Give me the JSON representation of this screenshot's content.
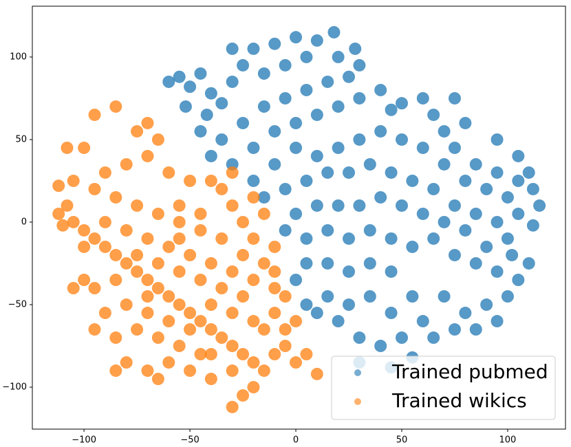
{
  "chart_data": {
    "type": "scatter",
    "xlim": [
      -124.4,
      127.3
    ],
    "ylim": [
      -125.4,
      130.8
    ],
    "xticks": [
      {
        "value": -100,
        "label": "−100"
      },
      {
        "value": -50,
        "label": "−50"
      },
      0,
      50,
      100
    ],
    "yticks": [
      {
        "value": -100,
        "label": "−100"
      },
      {
        "value": -50,
        "label": "−50"
      },
      0,
      50,
      100
    ],
    "legend": "lower right",
    "series": [
      {
        "name": "Trained pubmed",
        "color": "#1f77b4",
        "x": [
          -55,
          -50,
          -45,
          -40,
          -52,
          -42,
          -35,
          -30,
          -25,
          -20,
          -10,
          -15,
          -5,
          5,
          10,
          18,
          20,
          28,
          30,
          25,
          15,
          5,
          -5,
          -15,
          -25,
          -35,
          -40,
          -30,
          -20,
          -10,
          0,
          10,
          20,
          30,
          40,
          50,
          60,
          65,
          70,
          80,
          75,
          85,
          95,
          105,
          110,
          112,
          100,
          90,
          80,
          70,
          60,
          50,
          40,
          30,
          20,
          10,
          0,
          -10,
          -20,
          -15,
          -5,
          5,
          15,
          25,
          35,
          45,
          55,
          65,
          75,
          85,
          95,
          105,
          112,
          100,
          90,
          80,
          70,
          60,
          50,
          40,
          30,
          20,
          10,
          0,
          -5,
          5,
          15,
          25,
          35,
          45,
          55,
          65,
          75,
          85,
          95,
          105,
          110,
          100,
          90,
          80,
          75,
          65,
          60,
          55,
          45,
          35,
          25,
          15,
          5,
          0,
          5,
          15,
          25,
          35,
          45,
          50,
          40,
          30,
          20,
          10,
          30,
          45,
          55,
          -60,
          -45,
          85,
          70,
          95,
          102,
          115,
          105,
          95,
          75,
          45,
          -30,
          0
        ],
        "y": [
          88,
          82,
          90,
          78,
          70,
          65,
          72,
          85,
          95,
          105,
          108,
          90,
          95,
          100,
          110,
          115,
          100,
          105,
          95,
          88,
          85,
          80,
          75,
          70,
          60,
          50,
          40,
          35,
          45,
          55,
          60,
          65,
          70,
          75,
          80,
          72,
          75,
          65,
          55,
          60,
          45,
          35,
          30,
          40,
          30,
          20,
          15,
          20,
          25,
          35,
          45,
          50,
          55,
          50,
          45,
          40,
          45,
          35,
          25,
          15,
          20,
          25,
          30,
          30,
          35,
          30,
          25,
          20,
          10,
          5,
          0,
          5,
          -2,
          -10,
          -15,
          -5,
          0,
          5,
          10,
          15,
          10,
          10,
          10,
          5,
          -5,
          -10,
          -5,
          -10,
          -5,
          -10,
          -15,
          -10,
          -20,
          -25,
          -30,
          -35,
          -25,
          -45,
          -50,
          -55,
          -65,
          -70,
          -60,
          -45,
          -30,
          -25,
          -30,
          -25,
          -25,
          -35,
          -50,
          -45,
          -50,
          -45,
          -55,
          -70,
          -75,
          -70,
          -60,
          -55,
          -85,
          -88,
          -82,
          85,
          55,
          -65,
          -45,
          -60,
          -20,
          10,
          25,
          50,
          75,
          68,
          105,
          112
        ]
      },
      {
        "name": "Trained wikics",
        "color": "#ff7f0e",
        "x": [
          -112,
          -112,
          -108,
          -105,
          -100,
          -95,
          -90,
          -85,
          -80,
          -75,
          -70,
          -65,
          -60,
          -55,
          -50,
          -45,
          -40,
          -35,
          -30,
          -25,
          -20,
          -15,
          -10,
          -5,
          0,
          5,
          10,
          -25,
          -30,
          -20,
          -60,
          -70,
          -80,
          -85,
          -65,
          -50,
          -40,
          -45,
          -55,
          -65,
          -75,
          -85,
          -95,
          -90,
          -80,
          -70,
          -60,
          -50,
          -40,
          -30,
          -20,
          -10,
          -5,
          -10,
          -20,
          -30,
          -40,
          -50,
          -60,
          -70,
          -80,
          -90,
          -100,
          -105,
          -95,
          -85,
          -75,
          -65,
          -55,
          -45,
          -35,
          -25,
          -15,
          -20,
          -25,
          -30,
          -35,
          -40,
          -30,
          -20,
          -15,
          -10,
          -10,
          -45,
          -55,
          -65,
          -75,
          -85,
          -95,
          -105,
          -100,
          -108,
          -95,
          -85,
          -75,
          -70,
          -65,
          -70,
          -80,
          -90,
          -60,
          -50,
          -55,
          -45,
          -35,
          -25,
          -15,
          -5,
          0,
          -30,
          -40,
          -55,
          -70,
          -100,
          -110
        ],
        "y": [
          22,
          5,
          10,
          0,
          -5,
          -10,
          -15,
          -20,
          -25,
          -30,
          -35,
          -40,
          -45,
          -50,
          -55,
          -60,
          -65,
          -70,
          -75,
          -80,
          -85,
          -90,
          -80,
          -75,
          -85,
          -80,
          -92,
          -105,
          -112,
          -100,
          -85,
          -90,
          -85,
          -90,
          -95,
          -90,
          -95,
          -80,
          -75,
          -70,
          -65,
          -70,
          -65,
          -55,
          -50,
          -55,
          -60,
          -65,
          -50,
          -55,
          -60,
          -55,
          -45,
          -40,
          -35,
          -30,
          -25,
          -20,
          -15,
          -10,
          -5,
          0,
          -35,
          -40,
          -40,
          -35,
          -20,
          -25,
          -30,
          -35,
          -40,
          -45,
          -25,
          -10,
          0,
          10,
          20,
          25,
          30,
          15,
          5,
          -15,
          -30,
          5,
          0,
          5,
          10,
          15,
          20,
          25,
          45,
          45,
          65,
          70,
          55,
          60,
          50,
          40,
          35,
          30,
          30,
          25,
          10,
          -5,
          -10,
          -20,
          -65,
          -65,
          -60,
          -90,
          -80,
          -10,
          -45,
          -15,
          -2
        ]
      }
    ]
  }
}
